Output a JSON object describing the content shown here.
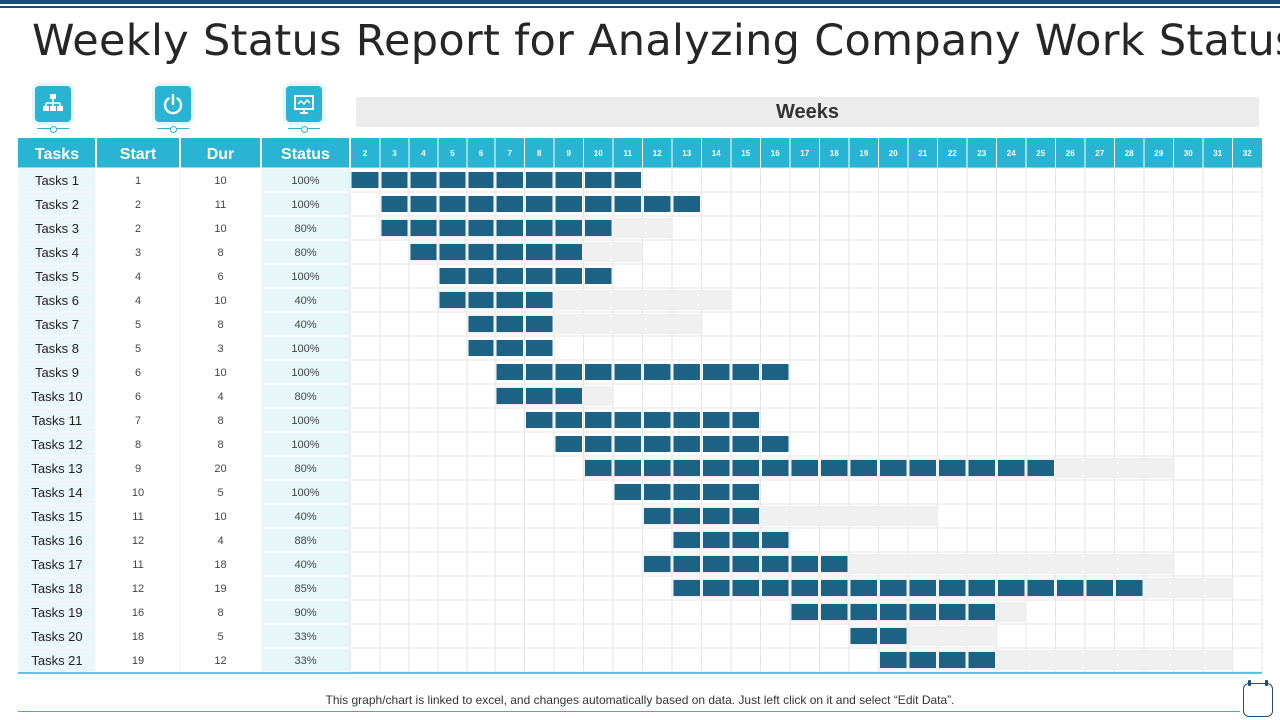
{
  "title": "Weekly Status Report for Analyzing Company Work Status",
  "icons": [
    "org-chart-icon",
    "power-icon",
    "presentation-icon"
  ],
  "footnote": "This graph/chart is linked to excel, and changes automatically based on data. Just left click on it and select “Edit Data”.",
  "colors": {
    "header": "#29b4d3",
    "bar": "#1b6285",
    "remaining": "#f0f0f0",
    "label_column": "#eaf6f9",
    "status_column": "#e6f6f9",
    "grid": "#e4e4e4"
  },
  "chart_data": {
    "type": "gantt",
    "header_label": "Weeks",
    "columns": {
      "task": "Tasks",
      "start": "Start",
      "duration": "Dur",
      "status": "Status"
    },
    "weeks": [
      2,
      3,
      4,
      5,
      6,
      7,
      8,
      9,
      10,
      11,
      12,
      13,
      14,
      15,
      16,
      17,
      18,
      19,
      20,
      21,
      22,
      23,
      24,
      25,
      26,
      27,
      28,
      29,
      30,
      31,
      32
    ],
    "tasks": [
      {
        "name": "Tasks 1",
        "start": 1,
        "duration": 10,
        "status": "100%",
        "progress": 1.0
      },
      {
        "name": "Tasks 2",
        "start": 2,
        "duration": 11,
        "status": "100%",
        "progress": 1.0
      },
      {
        "name": "Tasks 3",
        "start": 2,
        "duration": 10,
        "status": "80%",
        "progress": 0.8
      },
      {
        "name": "Tasks 4",
        "start": 3,
        "duration": 8,
        "status": "80%",
        "progress": 0.8
      },
      {
        "name": "Tasks 5",
        "start": 4,
        "duration": 6,
        "status": "100%",
        "progress": 1.0
      },
      {
        "name": "Tasks 6",
        "start": 4,
        "duration": 10,
        "status": "40%",
        "progress": 0.4
      },
      {
        "name": "Tasks 7",
        "start": 5,
        "duration": 8,
        "status": "40%",
        "progress": 0.4
      },
      {
        "name": "Tasks 8",
        "start": 5,
        "duration": 3,
        "status": "100%",
        "progress": 1.0
      },
      {
        "name": "Tasks 9",
        "start": 6,
        "duration": 10,
        "status": "100%",
        "progress": 1.0
      },
      {
        "name": "Tasks 10",
        "start": 6,
        "duration": 4,
        "status": "80%",
        "progress": 0.8
      },
      {
        "name": "Tasks 11",
        "start": 7,
        "duration": 8,
        "status": "100%",
        "progress": 1.0
      },
      {
        "name": "Tasks 12",
        "start": 8,
        "duration": 8,
        "status": "100%",
        "progress": 1.0
      },
      {
        "name": "Tasks 13",
        "start": 9,
        "duration": 20,
        "status": "80%",
        "progress": 0.8
      },
      {
        "name": "Tasks 14",
        "start": 10,
        "duration": 5,
        "status": "100%",
        "progress": 1.0
      },
      {
        "name": "Tasks 15",
        "start": 11,
        "duration": 10,
        "status": "40%",
        "progress": 0.4
      },
      {
        "name": "Tasks 16",
        "start": 12,
        "duration": 4,
        "status": "88%",
        "progress": 0.88
      },
      {
        "name": "Tasks 17",
        "start": 11,
        "duration": 18,
        "status": "40%",
        "progress": 0.4
      },
      {
        "name": "Tasks 18",
        "start": 12,
        "duration": 19,
        "status": "85%",
        "progress": 0.85
      },
      {
        "name": "Tasks 19",
        "start": 16,
        "duration": 8,
        "status": "90%",
        "progress": 0.9
      },
      {
        "name": "Tasks 20",
        "start": 18,
        "duration": 5,
        "status": "33%",
        "progress": 0.33
      },
      {
        "name": "Tasks 21",
        "start": 19,
        "duration": 12,
        "status": "33%",
        "progress": 0.33
      }
    ]
  }
}
